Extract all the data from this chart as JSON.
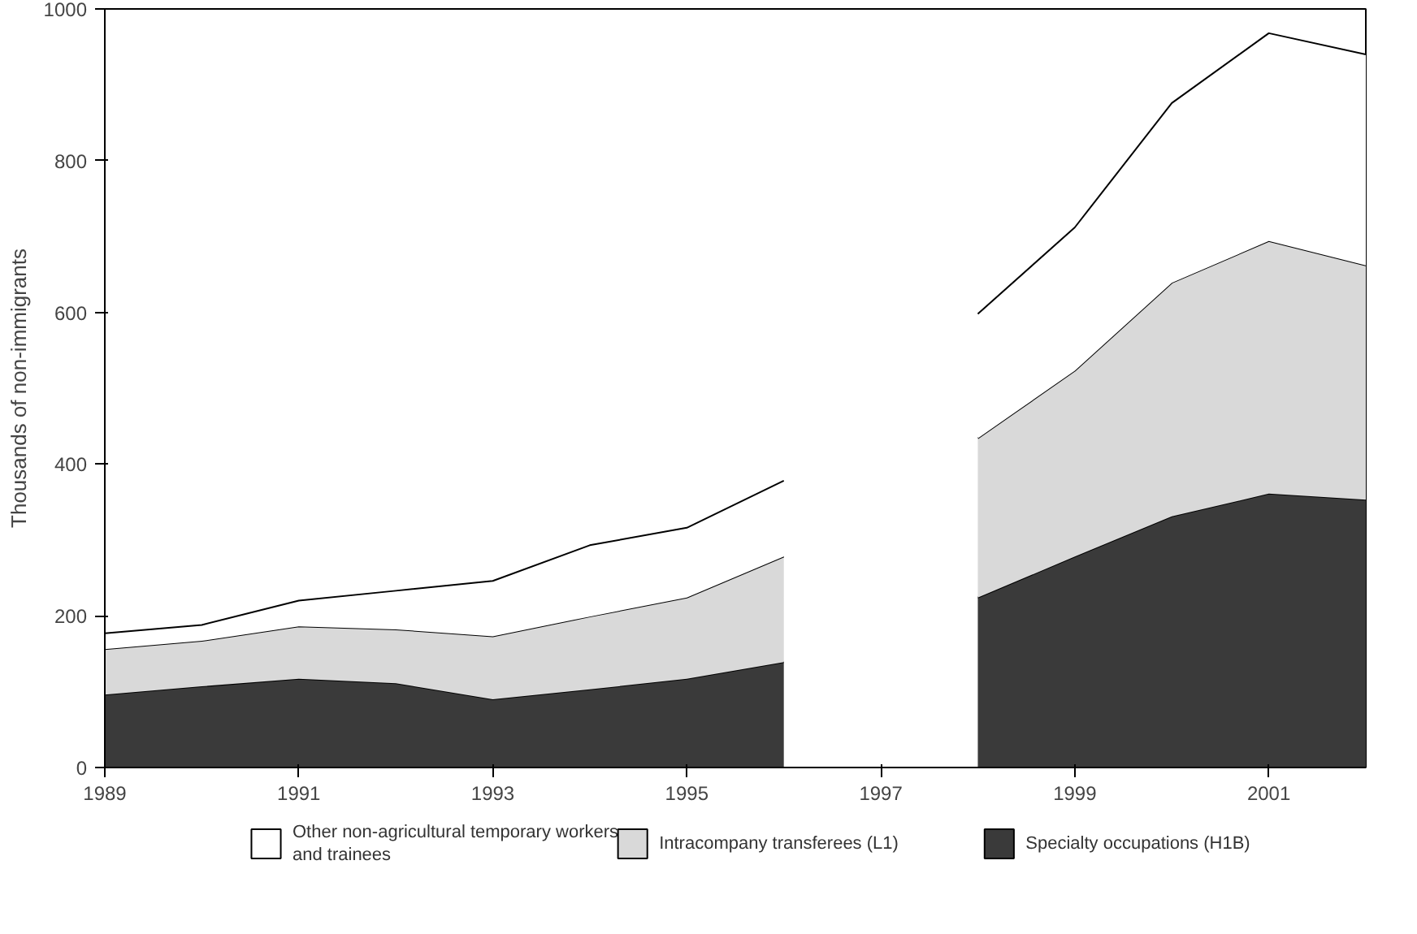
{
  "chart_data": {
    "type": "area",
    "stacked": true,
    "ylabel": "Thousands of non-immigrants",
    "x": [
      1989,
      1990,
      1991,
      1992,
      1993,
      1994,
      1995,
      1996,
      1997,
      1998,
      1999,
      2000,
      2001,
      2002
    ],
    "series": [
      {
        "name": "Specialty occupations (H1B)",
        "color": "#3a3a3a",
        "values": [
          96,
          107,
          117,
          111,
          90,
          103,
          117,
          139,
          null,
          224,
          278,
          331,
          361,
          353
        ]
      },
      {
        "name": "Intracompany transferees (L1)",
        "color": "#d9d9d9",
        "values": [
          60,
          60,
          69,
          71,
          83,
          96,
          107,
          139,
          null,
          210,
          245,
          308,
          333,
          309
        ]
      },
      {
        "name": "Other non-agricultural temporary workers and trainees",
        "color": "#ffffff",
        "values": [
          21,
          21,
          34,
          51,
          73,
          94,
          92,
          100,
          null,
          164,
          189,
          237,
          274,
          278
        ]
      }
    ],
    "xlim": [
      1989,
      2002
    ],
    "xticks": [
      1989,
      1991,
      1993,
      1995,
      1997,
      1999,
      2001
    ],
    "ylim": [
      0,
      1000
    ],
    "yticks": [
      0,
      200,
      400,
      600,
      800,
      1000
    ],
    "grid": false,
    "legend": "bottom"
  }
}
